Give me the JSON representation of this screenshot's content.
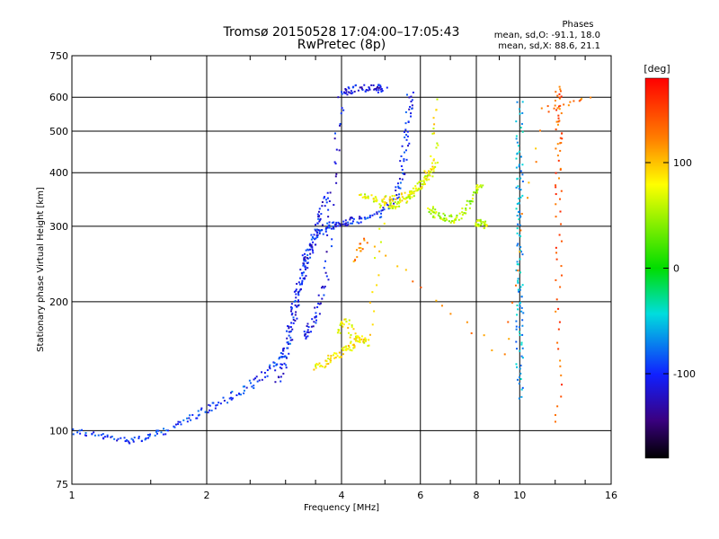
{
  "chart_data": {
    "type": "scatter",
    "title": "Tromsø 20150528 17:04:00–17:05:43",
    "subtitle": "RwPretec (8p)",
    "xlabel": "Frequency [MHz]",
    "ylabel": "Stationary phase Virtual Height [km]",
    "xscale": "log",
    "yscale": "log",
    "xlim": [
      1,
      16
    ],
    "ylim": [
      75,
      750
    ],
    "xticks": [
      1,
      2,
      4,
      6,
      8,
      10,
      16
    ],
    "xtick_labels": [
      "1",
      "2",
      "4",
      "6",
      "8",
      "10",
      "16"
    ],
    "yticks": [
      75,
      100,
      200,
      300,
      400,
      500,
      600,
      750
    ],
    "ytick_labels": [
      "75",
      "100",
      "200",
      "300",
      "400",
      "500",
      "600",
      "750"
    ],
    "grid": true,
    "stats_header": "Phases",
    "stats_o": "mean, sd,O: -91.1, 18.0",
    "stats_x": "mean, sd,X:  88.6, 21.1",
    "colorbar": {
      "label": "[deg]",
      "ticks": [
        "100",
        "0",
        "-100"
      ],
      "tick_values": [
        100,
        0,
        -100
      ],
      "range": [
        -180,
        180
      ]
    },
    "traces": [
      {
        "x": [
          1.0,
          1.15,
          1.3,
          1.45,
          1.6,
          1.8,
          2.0,
          2.2,
          2.45,
          2.7,
          2.9,
          3.05
        ],
        "y": [
          100,
          97,
          95,
          96,
          99,
          106,
          112,
          118,
          125,
          135,
          145,
          160
        ],
        "phase": -95
      },
      {
        "x": [
          3.05,
          3.15,
          3.25,
          3.35,
          3.5,
          3.7,
          3.9,
          4.1,
          4.4,
          4.8,
          5.2,
          5.4,
          5.55,
          5.65,
          5.7
        ],
        "y": [
          170,
          195,
          225,
          260,
          285,
          298,
          302,
          306,
          310,
          318,
          340,
          380,
          450,
          540,
          620
        ],
        "phase": -100
      },
      {
        "x": [
          2.9,
          3.0,
          3.1,
          3.2,
          3.3,
          3.4,
          3.5,
          3.6,
          3.7
        ],
        "y": [
          130,
          150,
          175,
          210,
          240,
          260,
          290,
          320,
          360
        ],
        "phase": -105
      },
      {
        "x": [
          3.3,
          3.4,
          3.55,
          3.7,
          3.85,
          4.0,
          4.2,
          4.5,
          4.8,
          5.0
        ],
        "y": [
          165,
          175,
          190,
          230,
          390,
          615,
          625,
          630,
          630,
          625
        ],
        "phase": -110
      },
      {
        "x": [
          3.5,
          3.7,
          3.9,
          4.1,
          4.3,
          4.5
        ],
        "y": [
          140,
          145,
          150,
          155,
          160,
          165
        ],
        "phase": 85
      },
      {
        "x": [
          3.9,
          4.1,
          4.3,
          4.6,
          5.0,
          5.4,
          5.8,
          6.1,
          6.4,
          6.6
        ],
        "y": [
          170,
          180,
          165,
          160,
          345,
          350,
          360,
          380,
          420,
          600
        ],
        "phase": 80
      },
      {
        "x": [
          4.4,
          4.7,
          5.0,
          5.3,
          5.6,
          5.9,
          6.2,
          6.5
        ],
        "y": [
          360,
          345,
          340,
          335,
          350,
          370,
          390,
          420
        ],
        "phase": 70
      },
      {
        "x": [
          6.3,
          6.5,
          6.8,
          7.2,
          7.6,
          8.0,
          8.2
        ],
        "y": [
          330,
          320,
          315,
          310,
          330,
          360,
          380
        ],
        "phase": 55
      },
      {
        "x": [
          8.0,
          8.2,
          8.4
        ],
        "y": [
          305,
          305,
          300
        ],
        "phase": 60
      },
      {
        "x": [
          10.0,
          10.0,
          10.0,
          10.0,
          10.0,
          10.0,
          10.0,
          10.0,
          10.0
        ],
        "y": [
          120,
          150,
          180,
          210,
          260,
          320,
          380,
          450,
          600
        ],
        "phase": -60
      },
      {
        "x": [
          12.2,
          12.2,
          12.2,
          12.2,
          12.2,
          12.2
        ],
        "y": [
          105,
          205,
          350,
          470,
          560,
          640
        ],
        "phase": 140
      },
      {
        "x": [
          4.3,
          4.5,
          9.2,
          11.2,
          14.5
        ],
        "y": [
          250,
          280,
          150,
          560,
          590
        ],
        "phase": 120
      }
    ]
  }
}
